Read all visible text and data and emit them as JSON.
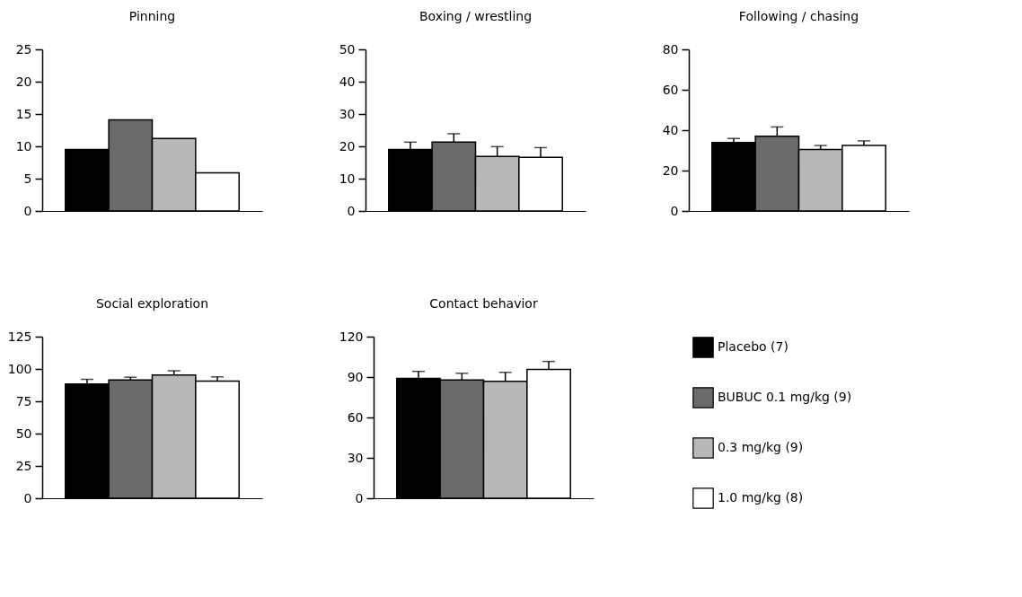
{
  "chart_data": [
    {
      "type": "bar",
      "title": "Pinning",
      "categories": [
        null
      ],
      "ylim": [
        0,
        25
      ],
      "yticks": [
        0,
        5,
        10,
        15,
        20,
        25
      ],
      "tick_labels": "y",
      "series": [
        {
          "color": "#000000",
          "values": [
            9.5
          ]
        },
        {
          "color": "#6a6a6a",
          "values": [
            14.1
          ]
        },
        {
          "color": "#b8b8b8",
          "values": [
            11.2
          ]
        },
        {
          "color": "#ffffff",
          "values": [
            5.9
          ]
        }
      ]
    },
    {
      "type": "bar",
      "title": "Boxing / wrestling",
      "categories": [
        null
      ],
      "ylim": [
        0,
        50
      ],
      "yticks": [
        0,
        10,
        20,
        30,
        40,
        50
      ],
      "tick_labels": "y",
      "series": [
        {
          "color": "#000000",
          "values": [
            19.0
          ],
          "errors": [
            [
              19.0,
              21.3
            ]
          ]
        },
        {
          "color": "#6a6a6a",
          "values": [
            21.3
          ],
          "errors": [
            [
              21.3,
              23.9
            ]
          ]
        },
        {
          "color": "#b8b8b8",
          "values": [
            16.9
          ],
          "errors": [
            [
              16.9,
              19.9
            ]
          ]
        },
        {
          "color": "#ffffff",
          "values": [
            16.6
          ],
          "errors": [
            [
              16.6,
              19.6
            ]
          ]
        }
      ]
    },
    {
      "type": "bar",
      "title": "Following / chasing",
      "categories": [
        null
      ],
      "ylim": [
        0,
        80
      ],
      "yticks": [
        0,
        20,
        40,
        60,
        80
      ],
      "tick_labels": "y",
      "series": [
        {
          "color": "#000000",
          "values": [
            33.9
          ],
          "errors": [
            [
              33.9,
              35.9
            ]
          ]
        },
        {
          "color": "#6a6a6a",
          "values": [
            37.0
          ],
          "errors": [
            [
              37.0,
              41.6
            ]
          ]
        },
        {
          "color": "#b8b8b8",
          "values": [
            30.4
          ],
          "errors": [
            [
              30.4,
              32.4
            ]
          ]
        },
        {
          "color": "#ffffff",
          "values": [
            32.4
          ],
          "errors": [
            [
              32.4,
              34.7
            ]
          ]
        }
      ]
    },
    {
      "type": "bar",
      "title": "Social exploration",
      "categories": [
        null
      ],
      "ylim": [
        0,
        125
      ],
      "yticks": [
        0,
        25,
        50,
        75,
        100,
        125
      ],
      "tick_labels": "y",
      "series": [
        {
          "color": "#000000",
          "values": [
            88.4
          ],
          "errors": [
            [
              88.4,
              92.0
            ]
          ]
        },
        {
          "color": "#6a6a6a",
          "values": [
            91.5
          ],
          "errors": [
            [
              91.5,
              93.6
            ]
          ]
        },
        {
          "color": "#b8b8b8",
          "values": [
            95.3
          ],
          "errors": [
            [
              95.3,
              98.6
            ]
          ]
        },
        {
          "color": "#ffffff",
          "values": [
            90.6
          ],
          "errors": [
            [
              90.6,
              93.9
            ]
          ]
        }
      ]
    },
    {
      "type": "bar",
      "title": "Contact behavior",
      "categories": [
        null
      ],
      "ylim": [
        0,
        120
      ],
      "yticks": [
        0,
        30,
        60,
        90,
        120
      ],
      "tick_labels": "y",
      "legend": "right",
      "series": [
        {
          "name": "Placebo (7)",
          "color": "#000000",
          "values": [
            89.0
          ],
          "errors": [
            [
              89.0,
              94.2
            ]
          ]
        },
        {
          "name": "BUBUC 0.1 mg/kg (9)",
          "color": "#6a6a6a",
          "values": [
            87.9
          ],
          "errors": [
            [
              87.9,
              92.8
            ]
          ]
        },
        {
          "name": "0.3 mg/kg (9)",
          "color": "#b8b8b8",
          "values": [
            86.8
          ],
          "errors": [
            [
              86.8,
              93.5
            ]
          ]
        },
        {
          "name": "1.0 mg/kg (8)",
          "color": "#ffffff",
          "values": [
            95.7
          ],
          "errors": [
            [
              95.7,
              101.6
            ]
          ]
        }
      ]
    }
  ]
}
